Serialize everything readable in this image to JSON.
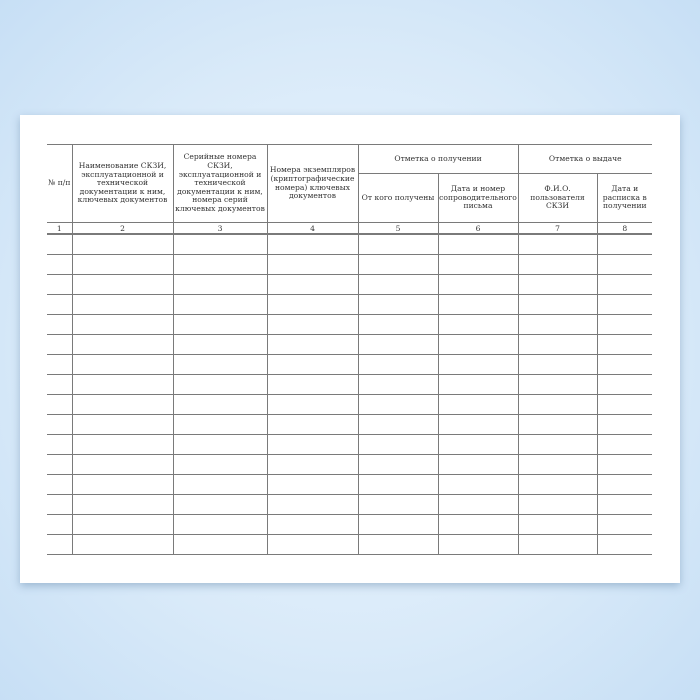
{
  "table": {
    "headers": {
      "col1": "№ п/п",
      "col2": "Наименование СКЗИ, эксплуатационной и технической документации к ним, ключевых документов",
      "col3": "Серийные номера СКЗИ, эксплуатационной и технической документации к ним, номера серий ключевых документов",
      "col4": "Номера экземпляров (криптографические номера) ключевых документов",
      "group_receipt": "Отметка о получении",
      "col5": "От кого получены",
      "col6": "Дата и номер сопроводительного письма",
      "group_issue": "Отметка о выдаче",
      "col7": "Ф.И.О. пользователя СКЗИ",
      "col8": "Дата и расписка в получении"
    },
    "column_numbers": [
      "1",
      "2",
      "3",
      "4",
      "5",
      "6",
      "7",
      "8"
    ],
    "empty_row_count": 16
  }
}
